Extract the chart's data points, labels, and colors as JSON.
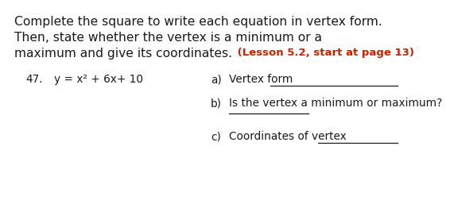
{
  "bg_color": "#ffffff",
  "title_line1": "Complete the square to write each equation in vertex form.",
  "title_line2": "Then, state whether the vertex is a minimum or a",
  "title_line3_black": "maximum and give its coordinates.",
  "title_line3_red": " (Lesson 5.2, start at page 13)",
  "problem_number": "47.",
  "equation": "y = x² + 6x+ 10",
  "part_a_label": "a)",
  "part_a_text": "Vertex form ",
  "part_b_label": "b)",
  "part_b_text": "Is the vertex a minimum or maximum?",
  "part_c_label": "c)",
  "part_c_text": "Coordinates of vertex ",
  "title_fontsize": 11.2,
  "body_fontsize": 9.8,
  "red_fontsize": 9.5,
  "black_color": "#1a1a1a",
  "red_color": "#cc2200"
}
